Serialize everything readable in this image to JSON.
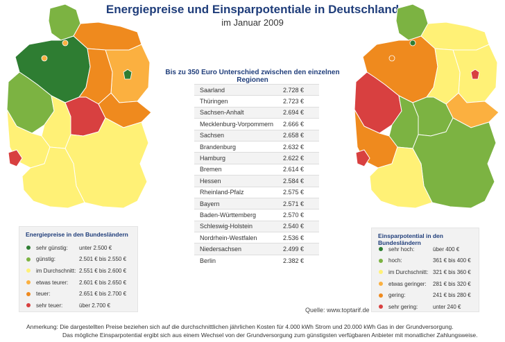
{
  "header": {
    "title": "Energiepreise und Einsparpotentiale in Deutschland",
    "subtitle": "im Januar 2009"
  },
  "colors": {
    "sehr_guenstig": "#2e7d32",
    "guenstig": "#7cb342",
    "durchschnitt": "#fff176",
    "etwas_teurer": "#fbb040",
    "teuer": "#ef8a1e",
    "sehr_teuer": "#d84040"
  },
  "center": {
    "heading": "Bis zu 350 Euro Unterschied zwischen den einzelnen Regionen",
    "prices": [
      {
        "state": "Saarland",
        "price": "2.728 €"
      },
      {
        "state": "Thüringen",
        "price": "2.723 €"
      },
      {
        "state": "Sachsen-Anhalt",
        "price": "2.694 €"
      },
      {
        "state": "Mecklenburg-Vorpommern",
        "price": "2.666 €"
      },
      {
        "state": "Sachsen",
        "price": "2.658 €"
      },
      {
        "state": "Brandenburg",
        "price": "2.632 €"
      },
      {
        "state": "Hamburg",
        "price": "2.622 €"
      },
      {
        "state": "Bremen",
        "price": "2.614 €"
      },
      {
        "state": "Hessen",
        "price": "2.584 €"
      },
      {
        "state": "Rheinland-Pfalz",
        "price": "2.575 €"
      },
      {
        "state": "Bayern",
        "price": "2.571 €"
      },
      {
        "state": "Baden-Württemberg",
        "price": "2.570 €"
      },
      {
        "state": "Schleswig-Holstein",
        "price": "2.540 €"
      },
      {
        "state": "Nordrhein-Westfalen",
        "price": "2.536 €"
      },
      {
        "state": "Niedersachsen",
        "price": "2.499 €"
      },
      {
        "state": "Berlin",
        "price": "2.382 €"
      }
    ]
  },
  "legend_left": {
    "title": "Energiepreise in den Bundesländern",
    "items": [
      {
        "label": "sehr günstig:",
        "range": "unter 2.500 €",
        "color": "#2e7d32"
      },
      {
        "label": "günstig:",
        "range": "2.501 € bis 2.550 €",
        "color": "#7cb342"
      },
      {
        "label": "im Durchschnitt:",
        "range": "2.551 € bis 2.600 €",
        "color": "#fff176"
      },
      {
        "label": "etwas teurer:",
        "range": "2.601 € bis 2.650 €",
        "color": "#fbb040"
      },
      {
        "label": "teuer:",
        "range": "2.651 € bis 2.700 €",
        "color": "#ef8a1e"
      },
      {
        "label": "sehr teuer:",
        "range": "über 2.700 €",
        "color": "#d84040"
      }
    ]
  },
  "legend_right": {
    "title": "Einsparpotential in den Bundesländern",
    "items": [
      {
        "label": "sehr hoch:",
        "range": "über 400 €",
        "color": "#2e7d32"
      },
      {
        "label": "hoch:",
        "range": "361 € bis 400 €",
        "color": "#7cb342"
      },
      {
        "label": "im Durchschnitt:",
        "range": "321 € bis 360 €",
        "color": "#fff176"
      },
      {
        "label": "etwas geringer:",
        "range": "281 € bis 320 €",
        "color": "#fbb040"
      },
      {
        "label": "gering:",
        "range": "241 € bis 280 €",
        "color": "#ef8a1e"
      },
      {
        "label": "sehr gering:",
        "range": "unter 240 €",
        "color": "#d84040"
      }
    ]
  },
  "source": "Quelle: www.toptarif.de",
  "note": {
    "line1": "Anmerkung: Die dargestellten Preise beziehen sich auf die durchschnittlichen jährlichen Kosten für 4.000 kWh Strom und 20.000 kWh Gas in der Grundversorgung.",
    "line2": "Das mögliche Einsparpotential ergibt sich aus einem Wechsel von der Grundversorgung zum günstigsten verfügbaren Anbieter mit monatlicher Zahlungsweise."
  }
}
